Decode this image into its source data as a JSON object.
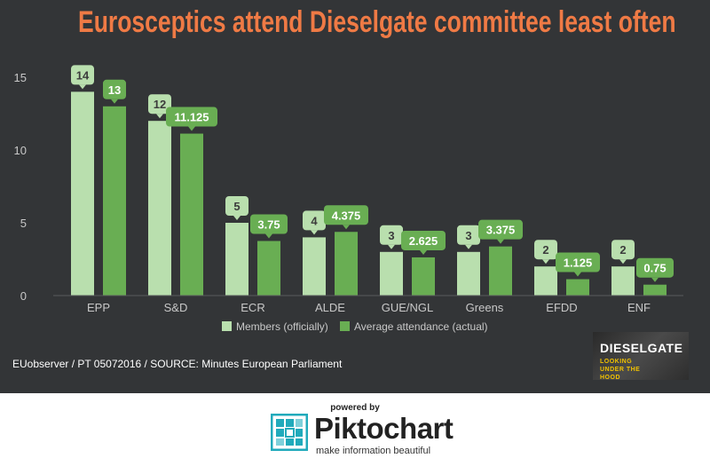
{
  "title": "Eurosceptics attend Dieselgate committee least often",
  "source": "EUobserver / PT 05072016 / SOURCE: Minutes European Parliament",
  "badge": {
    "title": "DIESELGATE",
    "subtitle": "LOOKING UNDER THE HOOD"
  },
  "footer": {
    "powered_by": "powered by",
    "brand": "Piktochart",
    "tagline": "make information beautiful"
  },
  "colors": {
    "background": "#333537",
    "title": "#ef7a45",
    "members": "#b9dfae",
    "attendance": "#69ae53",
    "axis_text": "#c8c8c8"
  },
  "chart_data": {
    "type": "bar",
    "title": "Eurosceptics attend Dieselgate committee least often",
    "categories": [
      "EPP",
      "S&D",
      "ECR",
      "ALDE",
      "GUE/NGL",
      "Greens",
      "EFDD",
      "ENF"
    ],
    "series": [
      {
        "name": "Members (officially)",
        "values": [
          14,
          12,
          5,
          4,
          3,
          3,
          2,
          2
        ],
        "labels": [
          "14",
          "12",
          "5",
          "4",
          "3",
          "3",
          "2",
          "2"
        ]
      },
      {
        "name": "Average attendance (actual)",
        "values": [
          13,
          11.125,
          3.75,
          4.375,
          2.625,
          3.375,
          1.125,
          0.75
        ],
        "labels": [
          "13",
          "11.125",
          "3.75",
          "4.375",
          "2.625",
          "3.375",
          "1.125",
          "0.75"
        ]
      }
    ],
    "yticks": [
      "0",
      "5",
      "10",
      "15"
    ],
    "ylim": [
      0,
      15
    ],
    "legend_position": "bottom",
    "grid": false
  }
}
